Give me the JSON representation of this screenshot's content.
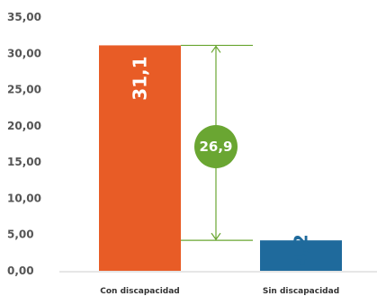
{
  "chart_data": {
    "type": "bar",
    "categories": [
      "Con discapacidad",
      "Sin discapacidad"
    ],
    "values": [
      31.1,
      4.2
    ],
    "value_labels": [
      "31,1",
      "4,2"
    ],
    "colors": [
      "#e85c26",
      "#1f6a9c"
    ],
    "ylim": [
      0,
      35
    ],
    "yticks": [
      0,
      5,
      10,
      15,
      20,
      25,
      30,
      35
    ],
    "ytick_labels": [
      "0,00",
      "5,00",
      "10,00",
      "15,00",
      "20,00",
      "25,00",
      "30,00",
      "35,00"
    ],
    "grid": false,
    "annotation": {
      "type": "difference",
      "from": 4.2,
      "to": 31.1,
      "label": "26,9",
      "color": "#6aa632"
    },
    "title": "",
    "xlabel": "",
    "ylabel": ""
  }
}
